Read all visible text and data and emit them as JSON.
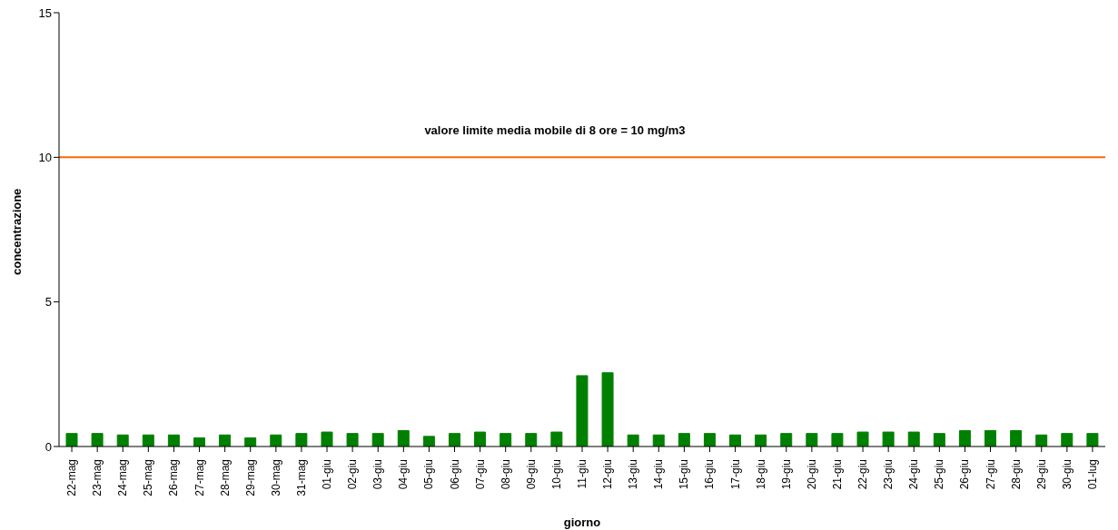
{
  "chart_data": {
    "type": "bar",
    "xlabel": "giorno",
    "ylabel": "concentrazione",
    "categories": [
      "22-mag",
      "23-mag",
      "24-mag",
      "25-mag",
      "26-mag",
      "27-mag",
      "28-mag",
      "29-mag",
      "30-mag",
      "31-mag",
      "01-giu",
      "02-giu",
      "03-giu",
      "04-giu",
      "05-giu",
      "06-giu",
      "07-giu",
      "08-giu",
      "09-giu",
      "10-giu",
      "11-giu",
      "12-giu",
      "13-giu",
      "14-giu",
      "15-giu",
      "16-giu",
      "17-giu",
      "18-giu",
      "19-giu",
      "20-giu",
      "21-giu",
      "22-giu",
      "23-giu",
      "24-giu",
      "25-giu",
      "26-giu",
      "27-giu",
      "28-giu",
      "29-giu",
      "30-giu",
      "01-lug"
    ],
    "values": [
      0.45,
      0.45,
      0.4,
      0.4,
      0.4,
      0.3,
      0.4,
      0.3,
      0.4,
      0.45,
      0.5,
      0.45,
      0.45,
      0.55,
      0.35,
      0.45,
      0.5,
      0.45,
      0.45,
      0.5,
      2.45,
      2.55,
      0.4,
      0.4,
      0.45,
      0.45,
      0.4,
      0.4,
      0.45,
      0.45,
      0.45,
      0.5,
      0.5,
      0.5,
      0.45,
      0.55,
      0.55,
      0.55,
      0.4,
      0.45,
      0.45
    ],
    "color": "#008000",
    "ylim": [
      0,
      15
    ],
    "yticks": [
      0,
      5,
      10,
      15
    ],
    "grid": false,
    "legend": false,
    "ref_lines": [
      {
        "axis": "y",
        "value": 10,
        "label": "valore limite media mobile di 8 ore = 10 mg/m3",
        "color": "#ff6600"
      }
    ]
  }
}
